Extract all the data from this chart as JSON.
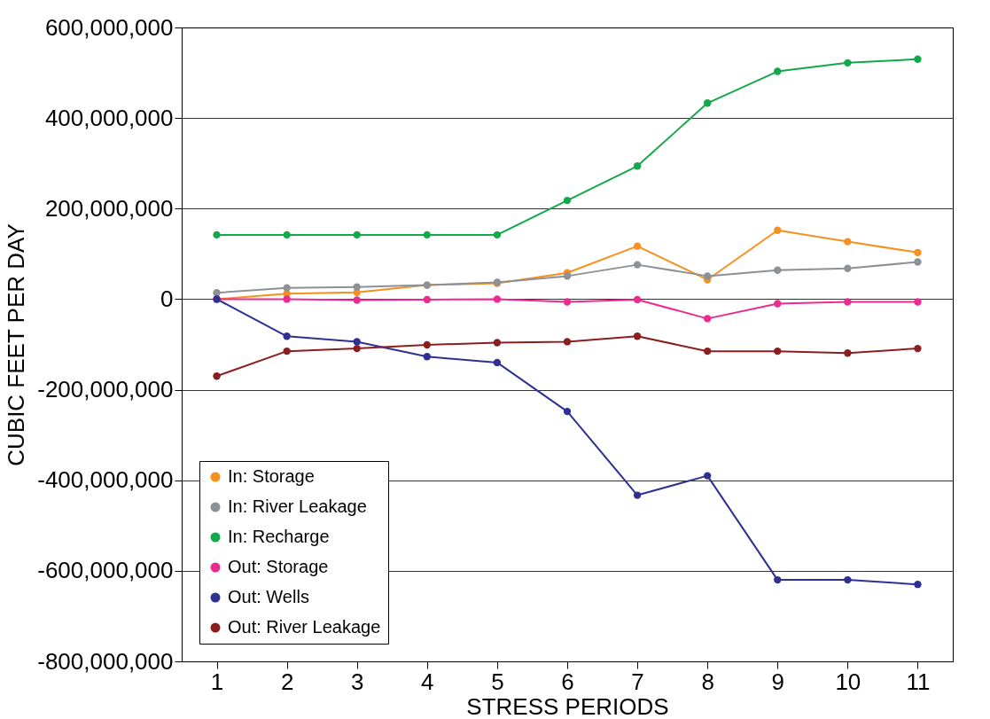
{
  "chart_data": {
    "type": "line",
    "xlabel": "STRESS PERIODS",
    "ylabel": "CUBIC FEET PER DAY",
    "categories": [
      "1",
      "2",
      "3",
      "4",
      "5",
      "6",
      "7",
      "8",
      "9",
      "10",
      "11"
    ],
    "series": [
      {
        "name": "In: Storage",
        "color": "#f7901e",
        "values": [
          0,
          12000000,
          15000000,
          31000000,
          35000000,
          58000000,
          117000000,
          43000000,
          152000000,
          127000000,
          103000000
        ]
      },
      {
        "name": "In: River Leakage",
        "color": "#8c9196",
        "values": [
          14000000,
          25000000,
          27000000,
          31000000,
          37000000,
          51000000,
          76000000,
          51000000,
          64000000,
          68000000,
          82000000
        ]
      },
      {
        "name": "In: Recharge",
        "color": "#13a84a",
        "values": [
          142000000,
          142000000,
          142000000,
          142000000,
          142000000,
          218000000,
          294000000,
          433000000,
          503000000,
          522000000,
          530000000
        ]
      },
      {
        "name": "Out: Storage",
        "color": "#ec2a8f",
        "values": [
          0,
          0,
          -2000000,
          -1000000,
          0,
          -6000000,
          -1000000,
          -43000000,
          -10000000,
          -6000000,
          -6000000
        ]
      },
      {
        "name": "Out: Wells",
        "color": "#2e3192",
        "values": [
          0,
          -82000000,
          -94000000,
          -127000000,
          -140000000,
          -248000000,
          -433000000,
          -390000000,
          -620000000,
          -620000000,
          -630000000
        ]
      },
      {
        "name": "Out: River Leakage",
        "color": "#8b1e1e",
        "values": [
          -170000000,
          -115000000,
          -109000000,
          -101000000,
          -96000000,
          -94000000,
          -82000000,
          -115000000,
          -115000000,
          -119000000,
          -109000000
        ]
      }
    ],
    "ylim": [
      -800000000,
      600000000
    ],
    "yticks": [
      {
        "value": -800000000,
        "label": "-800,000,000"
      },
      {
        "value": -600000000,
        "label": "-600,000,000"
      },
      {
        "value": -400000000,
        "label": "-400,000,000"
      },
      {
        "value": -200000000,
        "label": "-200,000,000"
      },
      0,
      {
        "value": 200000000,
        "label": "200,000,000"
      },
      {
        "value": 400000000,
        "label": "400,000,000"
      },
      {
        "value": 600000000,
        "label": "600,000,000"
      }
    ],
    "grid": "y",
    "legend": "bottom left",
    "marker": "circle",
    "line_style": "solid"
  }
}
